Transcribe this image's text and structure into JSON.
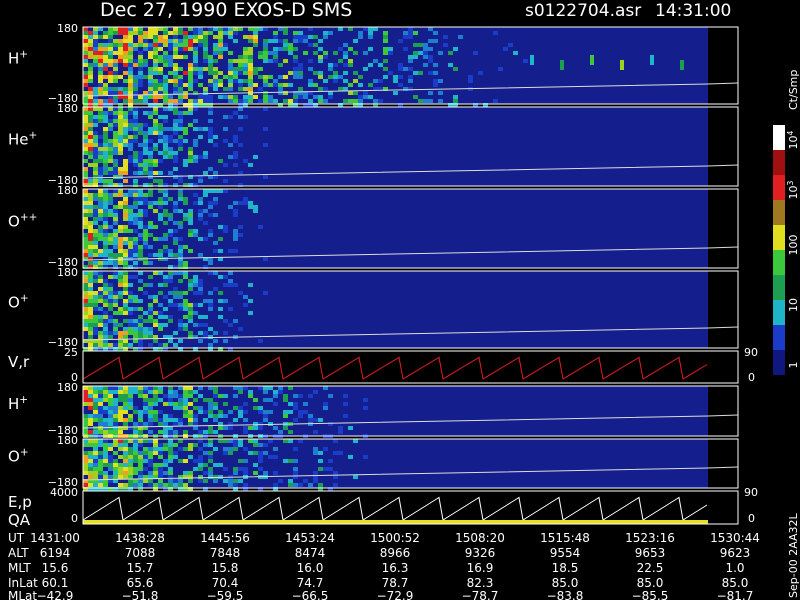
{
  "header": {
    "title": "Dec 27, 1990   EXOS-D SMS",
    "file": "s0122704.asr",
    "time": "14:31:00"
  },
  "panels": [
    {
      "label": "H",
      "sup": "+",
      "top": "180",
      "bottom": "−180"
    },
    {
      "label": "He",
      "sup": "+",
      "top": "180",
      "bottom": "−180"
    },
    {
      "label": "O",
      "sup": "++",
      "top": "180",
      "bottom": "−180"
    },
    {
      "label": "O",
      "sup": "+",
      "top": "180",
      "bottom": "−180"
    },
    {
      "label": "V,r",
      "top": "25",
      "bottom": "0",
      "right_top": "90",
      "right_bottom": "0"
    },
    {
      "label": "H",
      "sup": "+",
      "top": "180",
      "bottom": "−180"
    },
    {
      "label": "O",
      "sup": "+",
      "top": "180",
      "bottom": "−180"
    },
    {
      "label": "E,p",
      "label2": "QA",
      "top": "4000",
      "bottom": "0",
      "right_top": "90",
      "right_bottom": "0"
    }
  ],
  "colorbar": {
    "title": "Ct/Smp",
    "labels": [
      {
        "text": "10",
        "sup": "4"
      },
      {
        "text": "10",
        "sup": "3"
      },
      {
        "text": "100"
      },
      {
        "text": "10"
      },
      {
        "text": "1"
      }
    ]
  },
  "table": {
    "rows": [
      {
        "name": "UT",
        "values": [
          "1431:00",
          "1438:28",
          "1445:56",
          "1453:24",
          "1500:52",
          "1508:20",
          "1515:48",
          "1523:16",
          "1530:44"
        ]
      },
      {
        "name": "ALT",
        "values": [
          "6194",
          "7088",
          "7848",
          "8474",
          "8966",
          "9326",
          "9554",
          "9653",
          "9623"
        ]
      },
      {
        "name": "MLT",
        "values": [
          "15.6",
          "15.7",
          "15.8",
          "16.0",
          "16.3",
          "16.9",
          "18.5",
          "22.5",
          "1.0"
        ]
      },
      {
        "name": "InLat",
        "values": [
          "60.1",
          "65.6",
          "70.4",
          "74.7",
          "78.7",
          "82.3",
          "85.0",
          "85.0",
          "85.0"
        ]
      },
      {
        "name": "MLat",
        "values": [
          "−42.9",
          "−51.8",
          "−59.5",
          "−66.5",
          "−72.9",
          "−78.7",
          "−83.8",
          "−85.5",
          "−81.7"
        ]
      }
    ]
  },
  "note": "Sep-00  2AA32L"
}
